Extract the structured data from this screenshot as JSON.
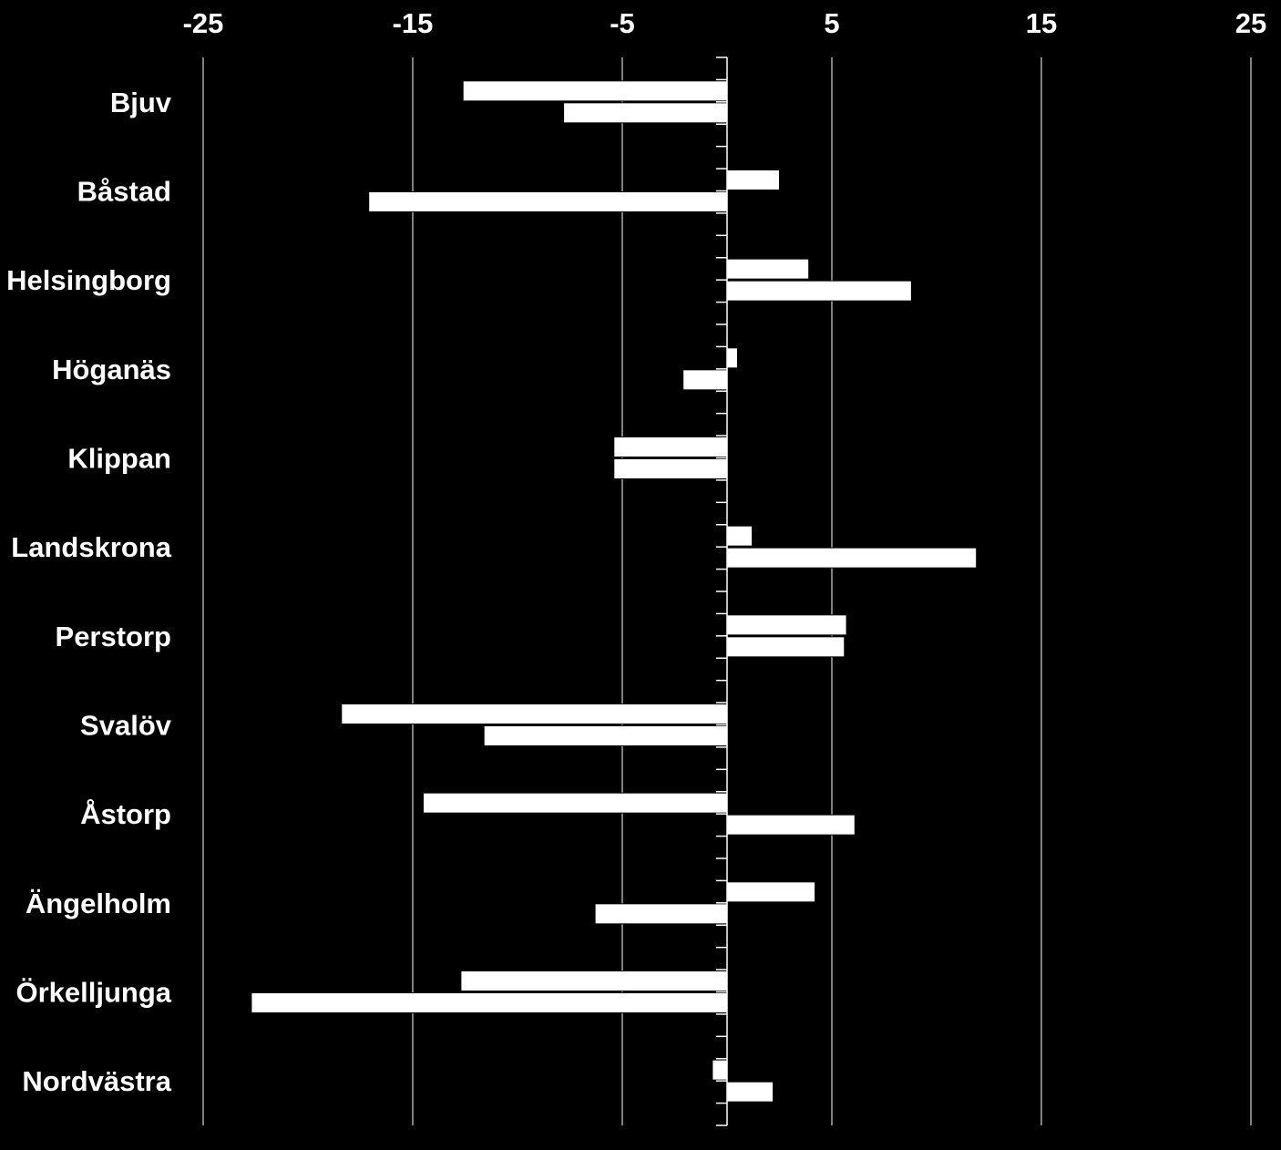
{
  "chart_data": {
    "type": "bar",
    "orientation": "horizontal",
    "categories": [
      "Bjuv",
      "Båstad",
      "Helsingborg",
      "Höganäs",
      "Klippan",
      "Landskrona",
      "Perstorp",
      "Svalöv",
      "Åstorp",
      "Ängelholm",
      "Örkelljunga",
      "Nordvästra"
    ],
    "series": [
      {
        "values": [
          -12.6,
          2.5,
          3.9,
          0.5,
          -5.4,
          1.2,
          5.7,
          -18.4,
          -14.5,
          4.2,
          -12.7,
          -0.7
        ]
      },
      {
        "values": [
          -7.8,
          -17.1,
          8.8,
          -2.1,
          -5.4,
          11.9,
          5.6,
          -11.6,
          6.1,
          -6.3,
          -22.7,
          2.2
        ]
      }
    ],
    "x_ticks": [
      "-25",
      "-15",
      "-5",
      "5",
      "15",
      "25"
    ],
    "xlim": [
      -25,
      25
    ],
    "title": "",
    "xlabel": "",
    "ylabel": "",
    "grid": true,
    "legend": "none",
    "colors": {
      "background": "#000000",
      "bars": "#ffffff",
      "bar_stroke": "#000000",
      "axis": "#ffffff",
      "text": "#ffffff"
    }
  }
}
